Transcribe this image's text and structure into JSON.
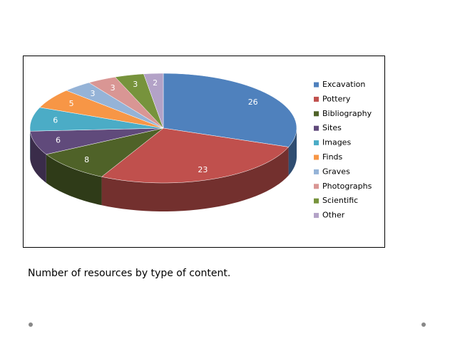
{
  "chart_data": {
    "type": "pie",
    "categories": [
      "Excavation",
      "Pottery",
      "Bibliography",
      "Sites",
      "Images",
      "Finds",
      "Graves",
      "Photographs",
      "Scientific",
      "Other"
    ],
    "values": [
      26,
      23,
      8,
      6,
      6,
      5,
      3,
      3,
      3,
      2
    ],
    "colors": [
      "#4f81bd",
      "#c0504d",
      "#4f6228",
      "#604a7b",
      "#4bacc6",
      "#f79646",
      "#95b3d7",
      "#d99694",
      "#77933c",
      "#b3a2c7"
    ],
    "legend": "right"
  },
  "caption": "Number of resources by type of content."
}
